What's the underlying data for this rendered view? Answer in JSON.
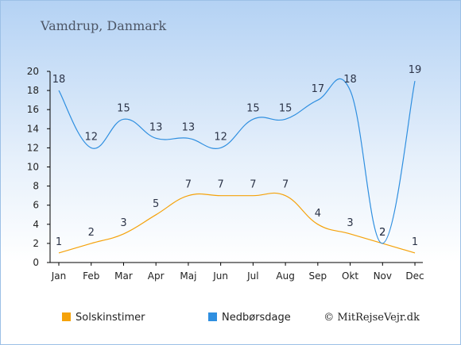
{
  "title": "Vamdrup, Danmark",
  "credit": "© MitRejseVejr.dk",
  "chart_data": {
    "type": "line",
    "categories": [
      "Jan",
      "Feb",
      "Mar",
      "Apr",
      "Maj",
      "Jun",
      "Jul",
      "Aug",
      "Sep",
      "Okt",
      "Nov",
      "Dec"
    ],
    "ylim": [
      0,
      20
    ],
    "yticks": [
      0,
      2,
      4,
      6,
      8,
      10,
      12,
      14,
      16,
      18,
      20
    ],
    "grid": false,
    "legend_position": "bottom",
    "series": [
      {
        "name": "Solskinstimer",
        "color": "#f5a20a",
        "values": [
          1,
          2,
          3,
          5,
          7,
          7,
          7,
          7,
          4,
          3,
          2,
          1
        ]
      },
      {
        "name": "Nedbørsdage",
        "color": "#2f8fe0",
        "values": [
          18,
          12,
          15,
          13,
          13,
          12,
          15,
          15,
          17,
          18,
          2,
          19
        ]
      }
    ]
  }
}
